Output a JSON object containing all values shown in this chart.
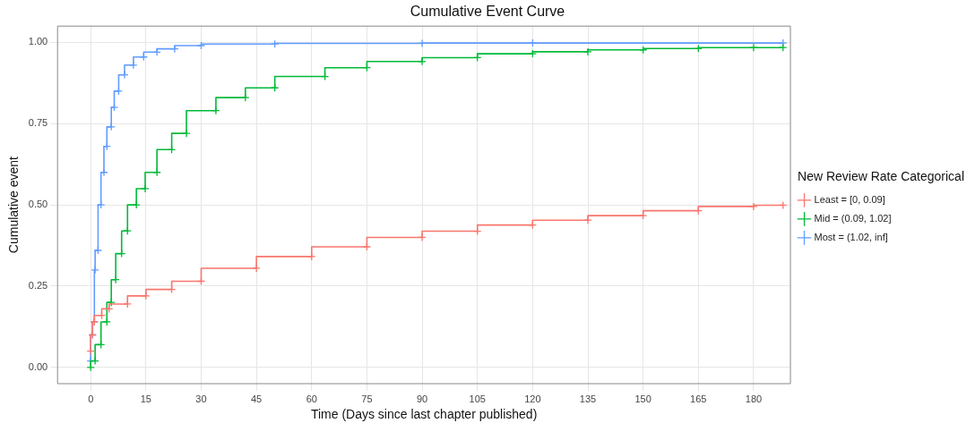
{
  "chart_data": {
    "type": "step",
    "title": "Cumulative Event Curve",
    "xlabel": "Time (Days since last chapter published)",
    "ylabel": "Cumulative event",
    "legend_title": "New Review Rate Categorical",
    "xlim": [
      -9,
      190
    ],
    "xticks": [
      0,
      15,
      30,
      45,
      60,
      75,
      90,
      105,
      120,
      135,
      150,
      165,
      180
    ],
    "ylim": [
      -0.05,
      1.05
    ],
    "yticks": [
      {
        "value": 0,
        "label": "0.00"
      },
      {
        "value": 0.25,
        "label": "0.25"
      },
      {
        "value": 0.5,
        "label": "0.50"
      },
      {
        "value": 0.75,
        "label": "0.75"
      },
      {
        "value": 1,
        "label": "1.00"
      }
    ],
    "grid": true,
    "legend": "right",
    "marker": "cross",
    "line_style": "solid",
    "series": [
      {
        "name": "Least = [0, 0.09]",
        "color": "#f8766d",
        "x": [
          0,
          0.5,
          1,
          3,
          5,
          10,
          15,
          22,
          30,
          45,
          60,
          75,
          90,
          105,
          120,
          135,
          150,
          165,
          180,
          188
        ],
        "values": [
          0.05,
          0.1,
          0.14,
          0.16,
          0.18,
          0.195,
          0.22,
          0.24,
          0.265,
          0.305,
          0.341,
          0.371,
          0.4,
          0.419,
          0.438,
          0.453,
          0.467,
          0.482,
          0.495,
          0.499
        ]
      },
      {
        "name": "Mid = (0.09, 1.02]",
        "color": "#00ba38",
        "x": [
          0,
          1.2,
          2.8,
          4.4,
          5.6,
          6.8,
          8.4,
          10,
          12.4,
          14.8,
          18,
          22,
          26,
          34,
          42,
          50,
          63.6,
          75,
          90,
          105,
          120,
          135,
          150,
          165,
          180,
          188
        ],
        "values": [
          0,
          0.02,
          0.07,
          0.14,
          0.2,
          0.27,
          0.35,
          0.42,
          0.5,
          0.55,
          0.6,
          0.67,
          0.72,
          0.79,
          0.83,
          0.86,
          0.895,
          0.922,
          0.941,
          0.953,
          0.965,
          0.971,
          0.977,
          0.981,
          0.984,
          0.984
        ]
      },
      {
        "name": "Most = (1.02, inf]",
        "color": "#619cff",
        "x": [
          0,
          0.5,
          1,
          1.2,
          2,
          2.8,
          3.6,
          4.4,
          5.6,
          6.4,
          7.6,
          9.2,
          11.6,
          14.4,
          18,
          22.8,
          30,
          50,
          90,
          120,
          188
        ],
        "values": [
          0.02,
          0.1,
          0.14,
          0.3,
          0.36,
          0.5,
          0.6,
          0.68,
          0.74,
          0.8,
          0.85,
          0.9,
          0.93,
          0.955,
          0.97,
          0.98,
          0.99,
          0.995,
          0.997,
          0.998,
          0.998
        ]
      }
    ]
  }
}
